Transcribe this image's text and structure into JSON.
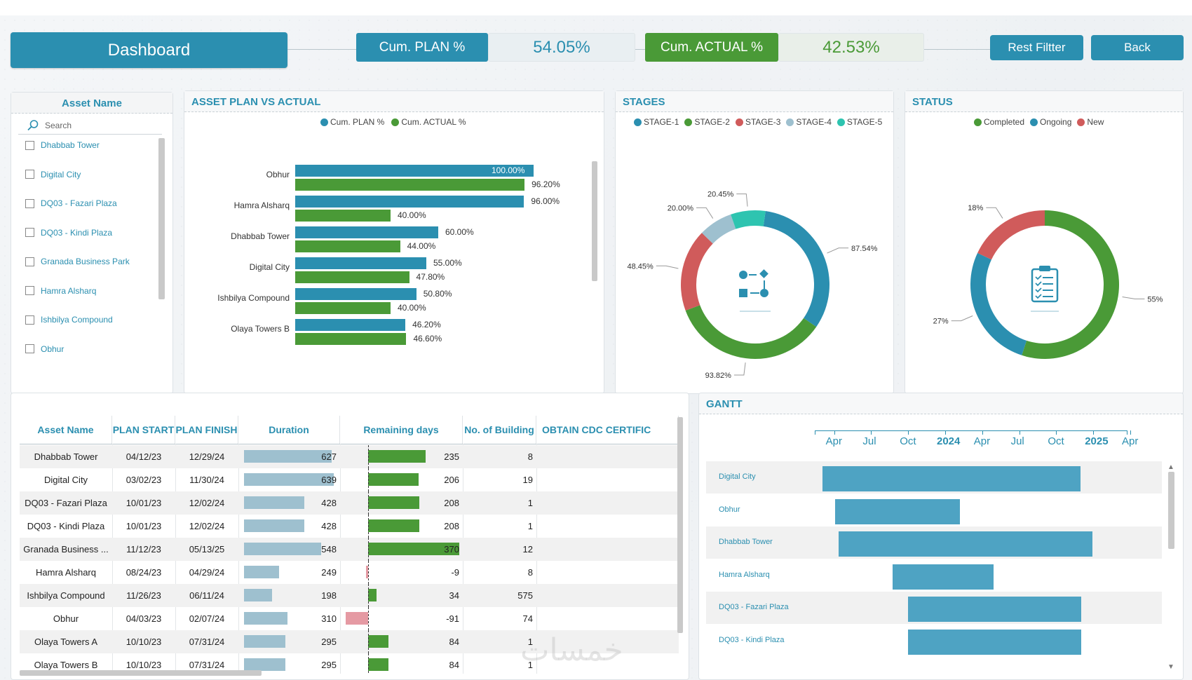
{
  "header": {
    "title": "Dashboard",
    "plan_label": "Cum. PLAN %",
    "plan_value": "54.05%",
    "actual_label": "Cum. ACTUAL %",
    "actual_value": "42.53%",
    "reset_button": "Rest Filtter",
    "back_button": "Back"
  },
  "colors": {
    "primary": "#2b8fb0",
    "green": "#4a9a37",
    "red": "#d05b5b",
    "light_blue": "#9ec0cf",
    "teal": "#2ec4b0",
    "plan_bar": "#2b8fb0",
    "actual_bar": "#4a9a37"
  },
  "slicer": {
    "title": "Asset Name",
    "search_placeholder": "Search",
    "items": [
      "Dhabbab Tower",
      "Digital City",
      "DQ03 - Fazari Plaza",
      "DQ03 - Kindi Plaza",
      "Granada Business Park",
      "Hamra Alsharq",
      "Ishbilya Compound",
      "Obhur"
    ]
  },
  "plan_vs_actual": {
    "title": "ASSET PLAN VS ACTUAL",
    "legend": [
      "Cum. PLAN %",
      "Cum. ACTUAL %"
    ]
  },
  "stages": {
    "title": "STAGES",
    "legend": [
      "STAGE-1",
      "STAGE-2",
      "STAGE-3",
      "STAGE-4",
      "STAGE-5"
    ],
    "labels": [
      "87.54%",
      "93.82%",
      "48.45%",
      "20.00%",
      "20.45%"
    ]
  },
  "status": {
    "title": "STATUS",
    "legend": [
      "Completed",
      "Ongoing",
      "New"
    ],
    "labels": [
      "55%",
      "27%",
      "18%"
    ]
  },
  "chart_data": [
    {
      "type": "bar",
      "orientation": "horizontal",
      "title": "ASSET PLAN VS ACTUAL",
      "categories": [
        "Obhur",
        "Hamra Alsharq",
        "Dhabbab Tower",
        "Digital City",
        "Ishbilya Compound",
        "Olaya Towers B"
      ],
      "series": [
        {
          "name": "Cum. PLAN %",
          "values": [
            100.0,
            96.0,
            60.0,
            55.0,
            50.8,
            46.2
          ]
        },
        {
          "name": "Cum. ACTUAL %",
          "values": [
            96.2,
            40.0,
            44.0,
            47.8,
            40.0,
            46.6
          ]
        }
      ],
      "value_labels": {
        "plan": [
          "100.00%",
          "96.00%",
          "60.00%",
          "55.00%",
          "50.80%",
          "46.20%"
        ],
        "actual": [
          "96.20%",
          "40.00%",
          "44.00%",
          "47.80%",
          "40.00%",
          "46.60%"
        ]
      },
      "xlim": [
        0,
        100
      ]
    },
    {
      "type": "pie",
      "variant": "donut",
      "title": "STAGES",
      "categories": [
        "STAGE-1",
        "STAGE-2",
        "STAGE-3",
        "STAGE-4",
        "STAGE-5"
      ],
      "values": [
        87.54,
        93.82,
        48.45,
        20.0,
        20.45
      ]
    },
    {
      "type": "pie",
      "variant": "donut",
      "title": "STATUS",
      "categories": [
        "Completed",
        "Ongoing",
        "New"
      ],
      "values": [
        55,
        27,
        18
      ]
    }
  ],
  "table": {
    "columns": [
      "Asset Name",
      "PLAN START",
      "PLAN FINISH",
      "Duration",
      "Remaining days",
      "No. of Building",
      "OBTAIN CDC CERTIFIC"
    ],
    "rows": [
      {
        "name": "Dhabbab Tower",
        "start": "04/12/23",
        "finish": "12/29/24",
        "duration": 627,
        "remaining": 235,
        "buildings": 8
      },
      {
        "name": "Digital City",
        "start": "03/02/23",
        "finish": "11/30/24",
        "duration": 639,
        "remaining": 206,
        "buildings": 19
      },
      {
        "name": "DQ03 - Fazari Plaza",
        "start": "10/01/23",
        "finish": "12/02/24",
        "duration": 428,
        "remaining": 208,
        "buildings": 1
      },
      {
        "name": "DQ03 - Kindi Plaza",
        "start": "10/01/23",
        "finish": "12/02/24",
        "duration": 428,
        "remaining": 208,
        "buildings": 1
      },
      {
        "name": "Granada Business ...",
        "start": "11/12/23",
        "finish": "05/13/25",
        "duration": 548,
        "remaining": 370,
        "buildings": 12
      },
      {
        "name": "Hamra Alsharq",
        "start": "08/24/23",
        "finish": "04/29/24",
        "duration": 249,
        "remaining": -9,
        "buildings": 8
      },
      {
        "name": "Ishbilya Compound",
        "start": "11/26/23",
        "finish": "06/11/24",
        "duration": 198,
        "remaining": 34,
        "buildings": 575
      },
      {
        "name": "Obhur",
        "start": "04/03/23",
        "finish": "02/07/24",
        "duration": 310,
        "remaining": -91,
        "buildings": 74
      },
      {
        "name": "Olaya Towers  A",
        "start": "10/10/23",
        "finish": "07/31/24",
        "duration": 295,
        "remaining": 84,
        "buildings": 1
      },
      {
        "name": "Olaya Towers  B",
        "start": "10/10/23",
        "finish": "07/31/24",
        "duration": 295,
        "remaining": 84,
        "buildings": 1
      }
    ]
  },
  "gantt": {
    "title": "GANTT",
    "axis": [
      "Apr",
      "Jul",
      "Oct",
      "2024",
      "Apr",
      "Jul",
      "Oct",
      "2025",
      "Apr"
    ],
    "tasks": [
      {
        "name": "Digital City",
        "start": "03/02/23",
        "finish": "11/30/24"
      },
      {
        "name": "Obhur",
        "start": "04/03/23",
        "finish": "02/07/24"
      },
      {
        "name": "Dhabbab Tower",
        "start": "04/12/23",
        "finish": "12/29/24"
      },
      {
        "name": "Hamra Alsharq",
        "start": "08/24/23",
        "finish": "04/29/24"
      },
      {
        "name": "DQ03 - Fazari Plaza",
        "start": "10/01/23",
        "finish": "12/02/24"
      },
      {
        "name": "DQ03 - Kindi Plaza",
        "start": "10/01/23",
        "finish": "12/02/24"
      }
    ]
  },
  "watermark": "خمسات"
}
